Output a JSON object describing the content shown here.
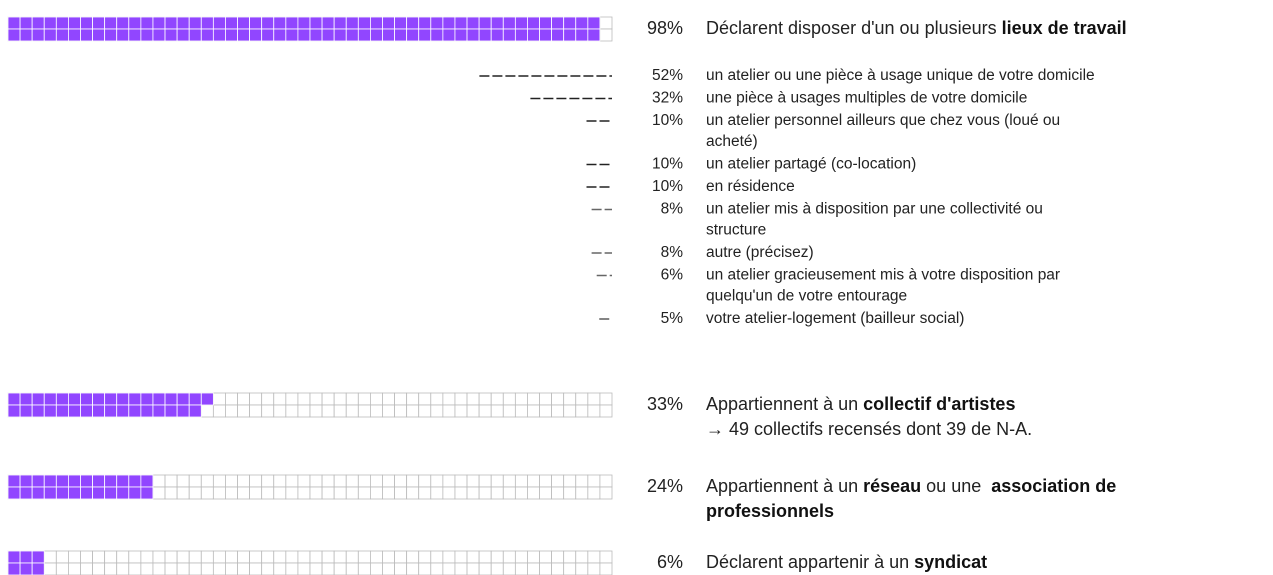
{
  "rows": [
    {
      "value": 98,
      "value_label": "98%",
      "lines": [
        [
          {
            "t": "Déclarent disposer d'un ou plusieurs ",
            "b": false
          },
          {
            "t": "lieux de travail",
            "b": true
          }
        ]
      ],
      "items": [
        {
          "value": 52,
          "value_label": "52%",
          "lines": [
            "un atelier ou une pièce à usage unique de votre domicile"
          ]
        },
        {
          "value": 32,
          "value_label": "32%",
          "lines": [
            "une pièce à usages multiples de votre domicile"
          ]
        },
        {
          "value": 10,
          "value_label": "10%",
          "lines": [
            "un atelier personnel ailleurs que chez vous (loué ou",
            "acheté)"
          ]
        },
        {
          "value": 10,
          "value_label": "10%",
          "lines": [
            "un atelier partagé (co-location)"
          ]
        },
        {
          "value": 10,
          "value_label": "10%",
          "lines": [
            "en résidence"
          ]
        },
        {
          "value": 8,
          "value_label": "8%",
          "lines": [
            "un atelier mis à disposition par une collectivité ou",
            "structure"
          ]
        },
        {
          "value": 8,
          "value_label": "8%",
          "lines": [
            "autre (précisez)"
          ]
        },
        {
          "value": 6,
          "value_label": "6%",
          "lines": [
            "un atelier gracieusement mis à votre disposition par",
            "quelqu'un de votre entourage"
          ]
        },
        {
          "value": 5,
          "value_label": "5%",
          "lines": [
            "votre atelier-logement (bailleur social)"
          ]
        }
      ]
    },
    {
      "value": 33,
      "value_label": "33%",
      "lines": [
        [
          {
            "t": "Appartiennent à un ",
            "b": false
          },
          {
            "t": "collectif d'artistes",
            "b": true
          }
        ],
        [
          {
            "t": "→ 49 collectifs recensés dont 39 de N-A.",
            "b": false
          }
        ]
      ]
    },
    {
      "value": 24,
      "value_label": "24%",
      "lines": [
        [
          {
            "t": "Appartiennent à un ",
            "b": false
          },
          {
            "t": "réseau",
            "b": true
          },
          {
            "t": " ou une  ",
            "b": false
          },
          {
            "t": "association de",
            "b": true
          }
        ],
        [
          {
            "t": "professionnels",
            "b": true
          }
        ]
      ]
    },
    {
      "value": 6,
      "value_label": "6%",
      "lines": [
        [
          {
            "t": "Déclarent appartenir à un ",
            "b": false
          },
          {
            "t": "syndicat",
            "b": true
          }
        ]
      ]
    }
  ]
}
